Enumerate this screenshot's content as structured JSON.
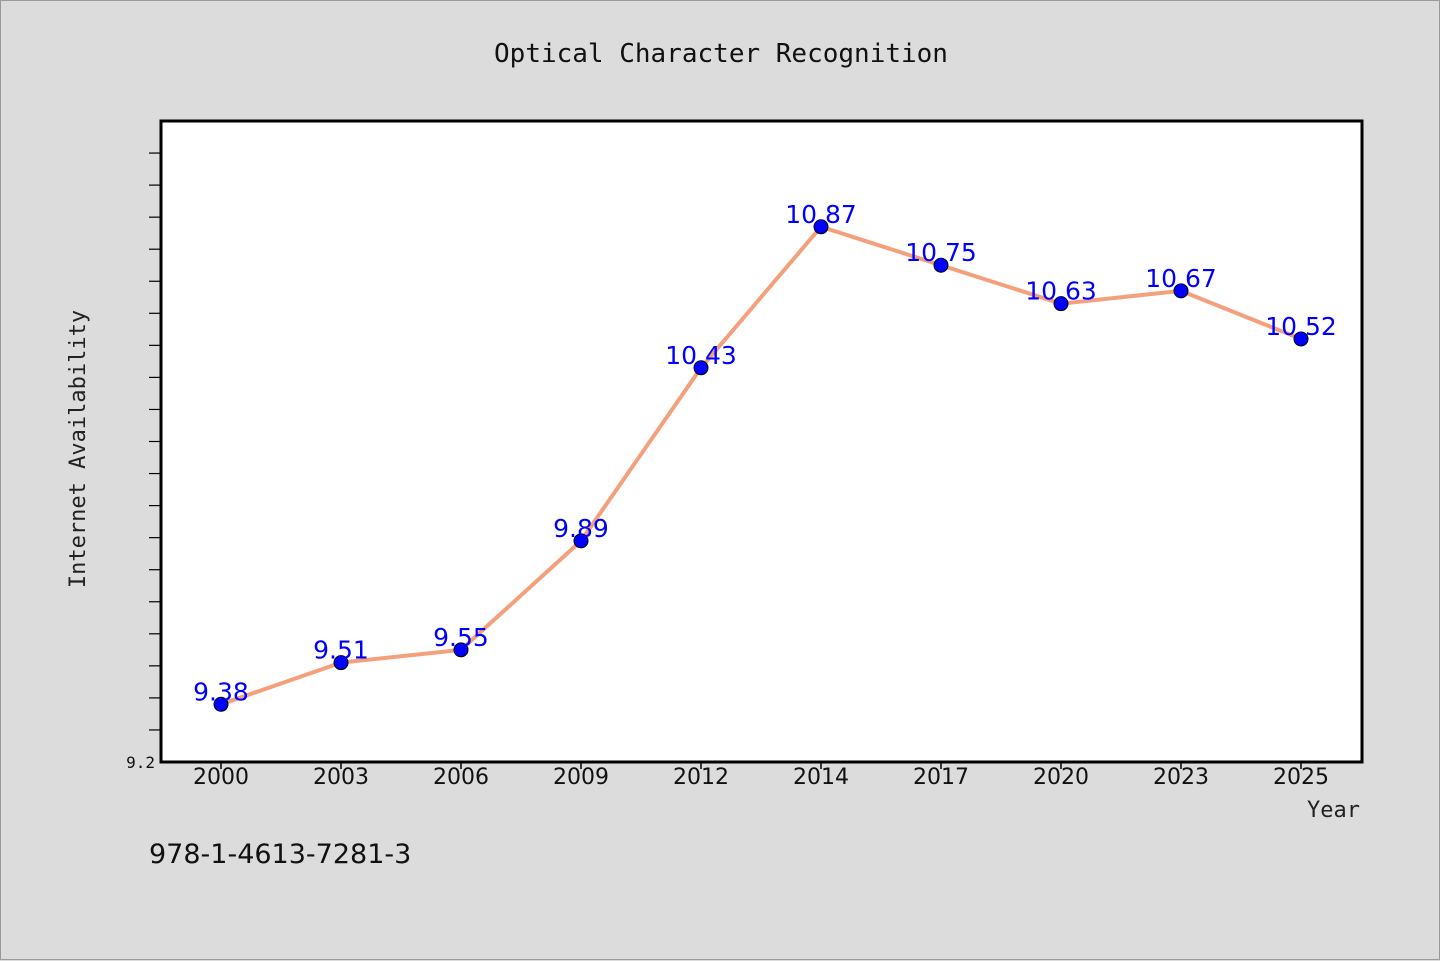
{
  "chart_data": {
    "type": "line",
    "title": "Optical Character Recognition",
    "xlabel": "Year",
    "ylabel": "Internet Availability",
    "categories": [
      "2000",
      "2003",
      "2006",
      "2009",
      "2012",
      "2014",
      "2017",
      "2020",
      "2023",
      "2025"
    ],
    "series": [
      {
        "values": [
          9.38,
          9.51,
          9.55,
          9.89,
          10.43,
          10.87,
          10.75,
          10.63,
          10.67,
          10.52
        ]
      }
    ],
    "data_labels": [
      "9.38",
      "9.51",
      "9.55",
      "9.89",
      "10.43",
      "10.87",
      "10.75",
      "10.63",
      "10.67",
      "10.52"
    ],
    "ylim": [
      9.2,
      11.2
    ],
    "y_tick_labels": [
      "9.2"
    ],
    "grid": false,
    "line_color": "#f4a07c",
    "marker_color": "#0000ff",
    "label_color": "#0000ff"
  },
  "footer": {
    "isbn": "978-1-4613-7281-3"
  }
}
